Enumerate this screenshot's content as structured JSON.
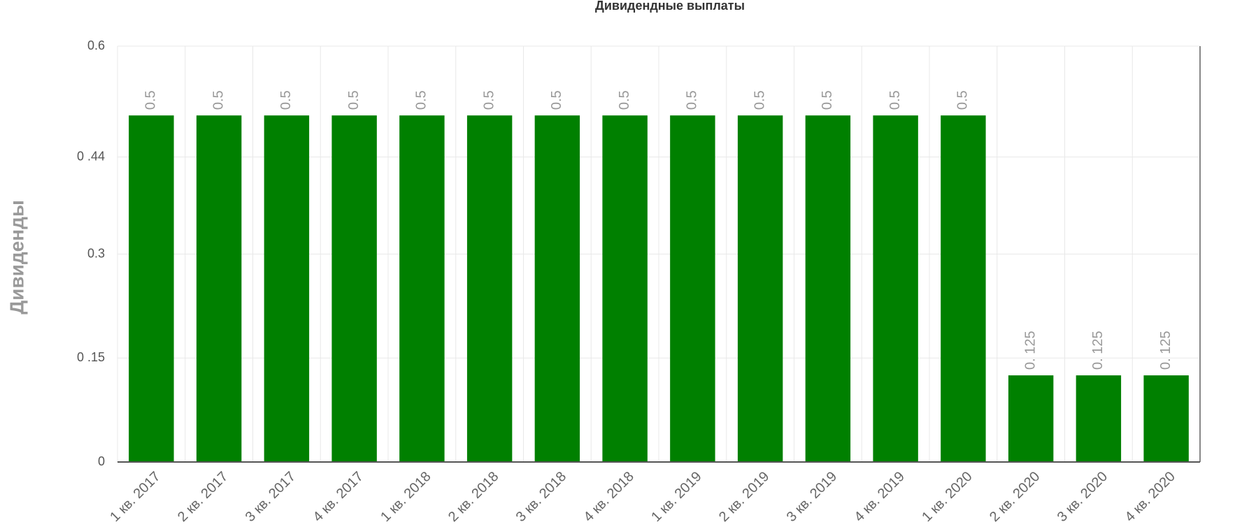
{
  "chart_data": {
    "type": "bar",
    "title": "Дивидендные выплаты",
    "y_label": "Дивиденды",
    "categories": [
      "1 кв. 2017",
      "2 кв. 2017",
      "3 кв. 2017",
      "4 кв. 2017",
      "1 кв. 2018",
      "2 кв. 2018",
      "3 кв. 2018",
      "4 кв. 2018",
      "1 кв. 2019",
      "2 кв. 2019",
      "3 кв. 2019",
      "4 кв. 2019",
      "1 кв. 2020",
      "2 кв. 2020",
      "3 кв. 2020",
      "4 кв. 2020"
    ],
    "values": [
      0.5,
      0.5,
      0.5,
      0.5,
      0.5,
      0.5,
      0.5,
      0.5,
      0.5,
      0.5,
      0.5,
      0.5,
      0.5,
      0.125,
      0.125,
      0.125
    ],
    "value_labels": [
      "0.5",
      "0.5",
      "0.5",
      "0.5",
      "0.5",
      "0.5",
      "0.5",
      "0.5",
      "0.5",
      "0.5",
      "0.5",
      "0.5",
      "0.5",
      "0. 125",
      "0. 125",
      "0. 125"
    ],
    "color": "#008000",
    "ylim": [
      0,
      0.6
    ],
    "yticks": [
      0,
      {
        "value": 0.15,
        "label": "0 .15"
      },
      0.3,
      {
        "value": 0.44,
        "label": "0 .44"
      },
      0.6
    ],
    "grid": true
  }
}
